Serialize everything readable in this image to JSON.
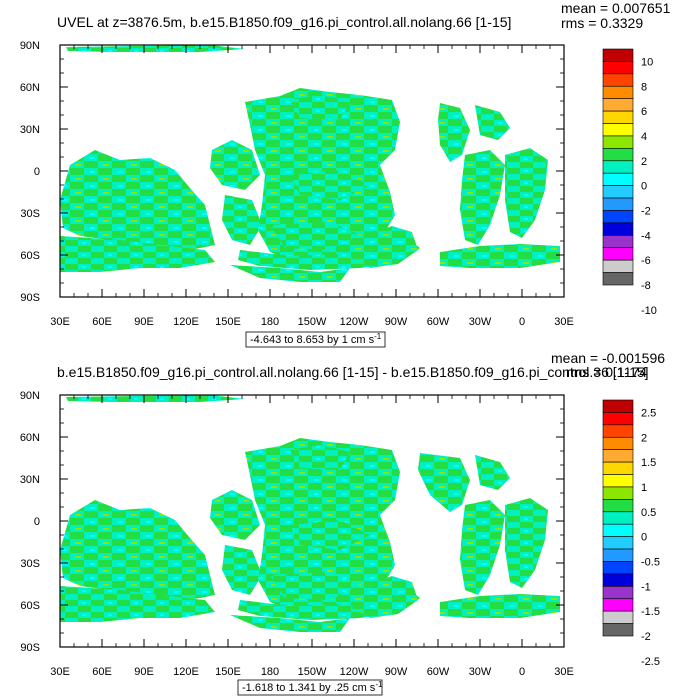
{
  "chart_data": [
    {
      "type": "heatmap",
      "title": "UVEL at z=3876.5m, b.e15.B1850.f09_g16.pi_control.all.nolang.66 [1-15]",
      "stats": {
        "mean": "mean = 0.007651",
        "rms": "rms = 0.3329"
      },
      "xticks": [
        "30E",
        "60E",
        "90E",
        "120E",
        "150E",
        "180",
        "150W",
        "120W",
        "90W",
        "60W",
        "30W",
        "0",
        "30E"
      ],
      "yticks": [
        "90N",
        "60N",
        "30N",
        "0",
        "30S",
        "60S",
        "90S"
      ],
      "range_label": "-4.643 to 8.653 by 1 cm s",
      "range_sup": "-1",
      "colorbar_labels": [
        "10",
        "8",
        "6",
        "4",
        "2",
        "0",
        "-2",
        "-4",
        "-6",
        "-8",
        "-10"
      ],
      "colorbar_colors": [
        "#c00000",
        "#ff0000",
        "#ff4400",
        "#ff8c00",
        "#ffaa33",
        "#ffd700",
        "#ffff00",
        "#8ce600",
        "#22dd44",
        "#00f0c0",
        "#00ffff",
        "#22ccff",
        "#2299ff",
        "#0044ff",
        "#0000dd",
        "#9933cc",
        "#ff00ff",
        "#cccccc",
        "#666666"
      ],
      "dominant_colors": [
        "#22dd44",
        "#00f0c0"
      ]
    },
    {
      "type": "heatmap",
      "title": "b.e15.B1850.f09_g16.pi_control.all.nolang.66 [1-15] - b.e15.B1850.f09_g16.pi_control.36 [1-15]",
      "stats": {
        "mean": "mean = -0.001596",
        "rms": "rms = 0.1174"
      },
      "xticks": [
        "30E",
        "60E",
        "90E",
        "120E",
        "150E",
        "180",
        "150W",
        "120W",
        "90W",
        "60W",
        "30W",
        "0",
        "30E"
      ],
      "yticks": [
        "90N",
        "60N",
        "30N",
        "0",
        "30S",
        "60S",
        "90S"
      ],
      "range_label": "-1.618 to 1.341 by .25 cm s",
      "range_sup": "-1",
      "colorbar_labels": [
        "2.5",
        "2",
        "1.5",
        "1",
        "0.5",
        "0",
        "-0.5",
        "-1",
        "-1.5",
        "-2",
        "-2.5"
      ],
      "colorbar_colors": [
        "#c00000",
        "#ff0000",
        "#ff4400",
        "#ff8c00",
        "#ffaa33",
        "#ffd700",
        "#ffff00",
        "#8ce600",
        "#22dd44",
        "#00f0c0",
        "#00ffff",
        "#22ccff",
        "#2299ff",
        "#0044ff",
        "#0000dd",
        "#9933cc",
        "#ff00ff",
        "#cccccc",
        "#666666"
      ],
      "dominant_colors": [
        "#22dd44",
        "#00f0c0"
      ]
    }
  ]
}
